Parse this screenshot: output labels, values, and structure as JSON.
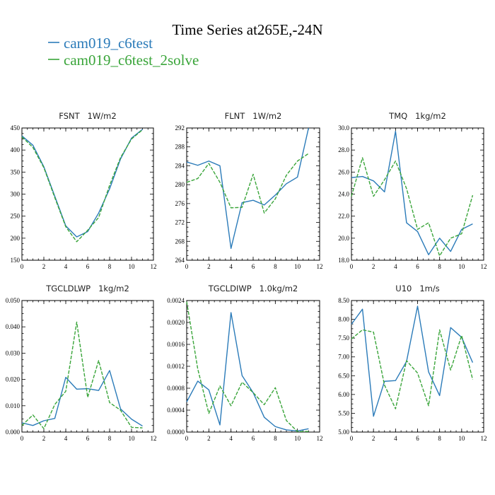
{
  "figure": {
    "title": "Time Series at265E,-24N",
    "legend": [
      {
        "label": "cam019_c6test",
        "color": "#2b7bb9",
        "dash": "solid"
      },
      {
        "label": "cam019_c6test_2solve",
        "color": "#3aa53a",
        "dash": "dashed"
      }
    ]
  },
  "chart_data": [
    {
      "type": "line",
      "title": "FSNT   1W/m2",
      "x": [
        0,
        1,
        2,
        3,
        4,
        5,
        6,
        7,
        8,
        9,
        10,
        11
      ],
      "xlim": [
        0,
        12
      ],
      "xticks": [
        0,
        2,
        4,
        6,
        8,
        10,
        12
      ],
      "xticklabels": [
        "0",
        "2",
        "4",
        "6",
        "8",
        "10",
        "12"
      ],
      "ylim": [
        150,
        450
      ],
      "yticks": [
        150,
        200,
        250,
        300,
        350,
        400,
        450
      ],
      "yticklabels": [
        "150",
        "200",
        "250",
        "300",
        "350",
        "400",
        "450"
      ],
      "series": [
        {
          "name": "cam019_c6test",
          "values": [
            432,
            411,
            362,
            295,
            228,
            203,
            215,
            257,
            312,
            380,
            427,
            447
          ]
        },
        {
          "name": "cam019_c6test_2solve",
          "values": [
            430,
            406,
            360,
            292,
            226,
            192,
            218,
            247,
            320,
            383,
            425,
            446
          ]
        }
      ]
    },
    {
      "type": "line",
      "title": "FLNT   1W/m2",
      "x": [
        0,
        1,
        2,
        3,
        4,
        5,
        6,
        7,
        8,
        9,
        10,
        11
      ],
      "xlim": [
        0,
        12
      ],
      "xticks": [
        0,
        2,
        4,
        6,
        8,
        10,
        12
      ],
      "xticklabels": [
        "0",
        "2",
        "4",
        "6",
        "8",
        "10",
        "12"
      ],
      "ylim": [
        264,
        292
      ],
      "yticks": [
        264,
        268,
        272,
        276,
        280,
        284,
        288,
        292
      ],
      "yticklabels": [
        "264",
        "268",
        "272",
        "276",
        "280",
        "284",
        "288",
        "292"
      ],
      "series": [
        {
          "name": "cam019_c6test",
          "values": [
            284.8,
            284.1,
            285.0,
            284.0,
            266.5,
            276.2,
            276.7,
            275.7,
            277.8,
            280.2,
            281.6,
            292.0
          ]
        },
        {
          "name": "cam019_c6test_2solve",
          "values": [
            280.5,
            281.3,
            284.5,
            280.5,
            275.1,
            275.2,
            282.2,
            274.0,
            277.0,
            282.0,
            285.0,
            286.6
          ]
        }
      ]
    },
    {
      "type": "line",
      "title": "TMQ   1kg/m2",
      "x": [
        0,
        1,
        2,
        3,
        4,
        5,
        6,
        7,
        8,
        9,
        10,
        11
      ],
      "xlim": [
        0,
        12
      ],
      "xticks": [
        0,
        2,
        4,
        6,
        8,
        10,
        12
      ],
      "xticklabels": [
        "0",
        "2",
        "4",
        "6",
        "8",
        "10",
        "12"
      ],
      "ylim": [
        18.0,
        30.0
      ],
      "yticks": [
        18,
        20,
        22,
        24,
        26,
        28,
        30
      ],
      "yticklabels": [
        "18.0",
        "20.0",
        "22.0",
        "24.0",
        "26.0",
        "28.0",
        "30.0"
      ],
      "series": [
        {
          "name": "cam019_c6test",
          "values": [
            25.5,
            25.6,
            25.2,
            24.2,
            29.7,
            21.4,
            20.6,
            18.5,
            20.0,
            18.8,
            20.8,
            21.3
          ]
        },
        {
          "name": "cam019_c6test_2solve",
          "values": [
            23.8,
            27.3,
            23.8,
            25.3,
            27.0,
            24.5,
            20.8,
            21.4,
            18.4,
            20.0,
            20.4,
            23.9
          ]
        }
      ]
    },
    {
      "type": "line",
      "title": "TGCLDLWP   1kg/m2",
      "x": [
        0,
        1,
        2,
        3,
        4,
        5,
        6,
        7,
        8,
        9,
        10,
        11
      ],
      "xlim": [
        0,
        12
      ],
      "xticks": [
        0,
        2,
        4,
        6,
        8,
        10,
        12
      ],
      "xticklabels": [
        "0",
        "2",
        "4",
        "6",
        "8",
        "10",
        "12"
      ],
      "ylim": [
        0.0,
        0.05
      ],
      "yticks": [
        0,
        0.01,
        0.02,
        0.03,
        0.04,
        0.05
      ],
      "yticklabels": [
        "0.000",
        "0.010",
        "0.020",
        "0.030",
        "0.040",
        "0.050"
      ],
      "series": [
        {
          "name": "cam019_c6test",
          "values": [
            0.0035,
            0.0025,
            0.0043,
            0.0052,
            0.0208,
            0.0163,
            0.0165,
            0.0158,
            0.0234,
            0.0088,
            0.0049,
            0.0023
          ]
        },
        {
          "name": "cam019_c6test_2solve",
          "values": [
            0.0025,
            0.0065,
            0.0013,
            0.0105,
            0.0155,
            0.0418,
            0.0132,
            0.0272,
            0.0112,
            0.0083,
            0.0018,
            0.0016
          ]
        }
      ]
    },
    {
      "type": "line",
      "title": "TGCLDIWP   1.0kg/m2",
      "x": [
        0,
        1,
        2,
        3,
        4,
        5,
        6,
        7,
        8,
        9,
        10,
        11
      ],
      "xlim": [
        0,
        12
      ],
      "xticks": [
        0,
        2,
        4,
        6,
        8,
        10,
        12
      ],
      "xticklabels": [
        "0",
        "2",
        "4",
        "6",
        "8",
        "10",
        "12"
      ],
      "ylim": [
        0.0,
        0.0024
      ],
      "yticks": [
        0,
        0.0004,
        0.0008,
        0.0012,
        0.0016,
        0.002,
        0.0024
      ],
      "yticklabels": [
        "0.0000",
        "0.0004",
        "0.0008",
        "0.0012",
        "0.0016",
        "0.0020",
        "0.0024"
      ],
      "series": [
        {
          "name": "cam019_c6test",
          "values": [
            0.00055,
            0.00093,
            0.00077,
            0.00013,
            0.00218,
            0.00103,
            0.00072,
            0.00027,
            0.0001,
            4e-05,
            2e-05,
            6e-05
          ]
        },
        {
          "name": "cam019_c6test_2solve",
          "values": [
            0.00238,
            0.00115,
            0.00034,
            0.00084,
            0.00048,
            0.00091,
            0.00072,
            0.0005,
            0.00081,
            0.00021,
            1e-05,
            1e-05
          ]
        }
      ]
    },
    {
      "type": "line",
      "title": "U10   1m/s",
      "x": [
        0,
        1,
        2,
        3,
        4,
        5,
        6,
        7,
        8,
        9,
        10,
        11
      ],
      "xlim": [
        0,
        12
      ],
      "xticks": [
        0,
        2,
        4,
        6,
        8,
        10,
        12
      ],
      "xticklabels": [
        "0",
        "2",
        "4",
        "6",
        "8",
        "10",
        "12"
      ],
      "ylim": [
        5.0,
        8.5
      ],
      "yticks": [
        5,
        5.5,
        6,
        6.5,
        7,
        7.5,
        8,
        8.5
      ],
      "yticklabels": [
        "5.00",
        "5.50",
        "6.00",
        "6.50",
        "7.00",
        "7.50",
        "8.00",
        "8.50"
      ],
      "series": [
        {
          "name": "cam019_c6test",
          "values": [
            7.87,
            8.27,
            5.42,
            6.35,
            6.37,
            6.88,
            8.35,
            6.6,
            5.97,
            7.78,
            7.52,
            6.85
          ]
        },
        {
          "name": "cam019_c6test_2solve",
          "values": [
            7.48,
            7.72,
            7.66,
            6.25,
            5.62,
            6.9,
            6.57,
            5.7,
            7.72,
            6.65,
            7.57,
            6.4
          ]
        }
      ]
    }
  ]
}
